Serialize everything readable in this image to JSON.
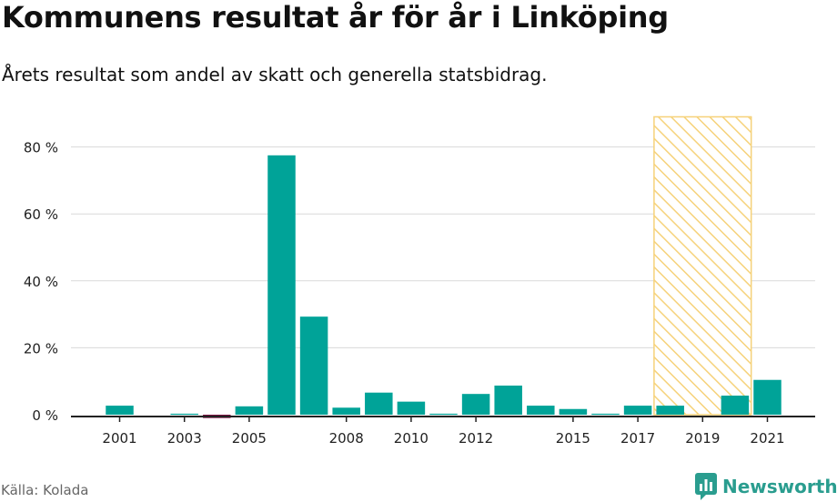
{
  "title": "Kommunens resultat år för år i Linköping",
  "subtitle": "Årets resultat som andel av skatt och generella statsbidrag.",
  "source": "Källa: Kolada",
  "brand": {
    "name": "Newsworthy",
    "icon": "newsworthy-logo-icon"
  },
  "colors": {
    "positive": "#00a398",
    "negative": "#7a1040",
    "highlight": "#f6d27a",
    "grid": "#d9d9d9",
    "axis": "#222222"
  },
  "chart_data": {
    "type": "bar",
    "categories": [
      "2001",
      "2002",
      "2003",
      "2004",
      "2005",
      "2006",
      "2007",
      "2008",
      "2009",
      "2010",
      "2011",
      "2012",
      "2013",
      "2014",
      "2015",
      "2016",
      "2017",
      "2018",
      "2019",
      "2020",
      "2021"
    ],
    "values": [
      2.7,
      0,
      0.3,
      -1.0,
      2.5,
      77.5,
      29.3,
      2.1,
      6.6,
      3.9,
      0.3,
      6.2,
      8.7,
      2.7,
      1.7,
      0.3,
      2.7,
      2.7,
      null,
      5.7,
      10.4
    ],
    "x_tick_labels": [
      "2001",
      "2003",
      "2005",
      "2008",
      "2010",
      "2012",
      "2015",
      "2017",
      "2019",
      "2021"
    ],
    "y_ticks": [
      0,
      20,
      40,
      60,
      80
    ],
    "y_tick_labels": [
      "0 %",
      "20 %",
      "40 %",
      "60 %",
      "80 %"
    ],
    "ylim": [
      -2,
      89
    ],
    "highlight_category": "2019",
    "grid": true
  }
}
